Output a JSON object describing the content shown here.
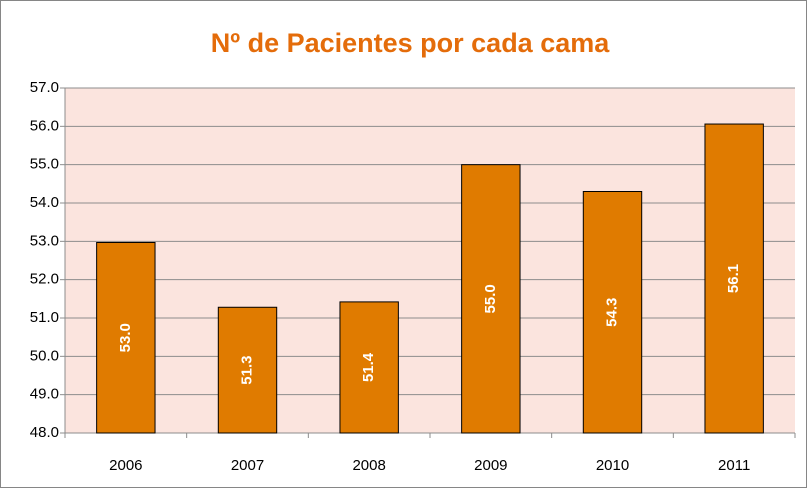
{
  "chart_data": {
    "type": "bar",
    "title": "Nº de Pacientes por cada cama",
    "categories": [
      "2006",
      "2007",
      "2008",
      "2009",
      "2010",
      "2011"
    ],
    "values": [
      52.97,
      51.28,
      51.42,
      55.0,
      54.3,
      56.06
    ],
    "value_labels": [
      "53.0",
      "51.3",
      "51.4",
      "55.0",
      "54.3",
      "56.1"
    ],
    "color": "#e07b00",
    "ylim": [
      48,
      57
    ],
    "yticks": [
      {
        "value": 48,
        "label": "48.0"
      },
      {
        "value": 49,
        "label": "49.0"
      },
      {
        "value": 50,
        "label": "50.0"
      },
      {
        "value": 51,
        "label": "51.0"
      },
      {
        "value": 52,
        "label": "52.0"
      },
      {
        "value": 53,
        "label": "53.0"
      },
      {
        "value": 54,
        "label": "54.0"
      },
      {
        "value": 55,
        "label": "55.0"
      },
      {
        "value": 56,
        "label": "56.0"
      },
      {
        "value": 57,
        "label": "57.0"
      }
    ],
    "grid": true
  }
}
